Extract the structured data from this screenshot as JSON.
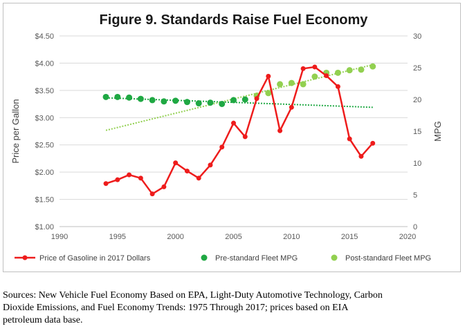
{
  "chart_data": {
    "type": "line",
    "title": "Figure 9. Standards Raise Fuel Economy",
    "ylabel": "Price per Gallon",
    "y2label": "MPG",
    "xlim": [
      1990,
      2020
    ],
    "ylim": [
      1.0,
      4.5
    ],
    "y2lim": [
      0,
      30
    ],
    "x_ticks": [
      "1990",
      "1995",
      "2000",
      "2005",
      "2010",
      "2015",
      "2020"
    ],
    "y_ticks": [
      "$1.00",
      "$1.50",
      "$2.00",
      "$2.50",
      "$3.00",
      "$3.50",
      "$4.00",
      "$4.50"
    ],
    "y2_ticks": [
      "0",
      "5",
      "10",
      "15",
      "20",
      "25",
      "30"
    ],
    "grid": true,
    "legend": "bottom",
    "series": [
      {
        "name": "Price of Gasoline in 2017 Dollars",
        "axis": "left",
        "style": "line-marker",
        "color": "#ee1c1c",
        "x": [
          1994,
          1995,
          1996,
          1997,
          1998,
          1999,
          2000,
          2001,
          2002,
          2003,
          2004,
          2005,
          2006,
          2007,
          2008,
          2009,
          2010,
          2011,
          2012,
          2013,
          2014,
          2015,
          2016,
          2017
        ],
        "y": [
          1.79,
          1.86,
          1.95,
          1.89,
          1.6,
          1.73,
          2.17,
          2.02,
          1.89,
          2.13,
          2.46,
          2.9,
          2.65,
          3.35,
          3.76,
          2.76,
          3.19,
          3.9,
          3.93,
          3.77,
          3.57,
          2.61,
          2.29,
          2.53
        ]
      },
      {
        "name": "Pre-standard Fleet MPG",
        "axis": "right",
        "style": "scatter-trend",
        "color": "#1fa843",
        "x": [
          1994,
          1995,
          1996,
          1997,
          1998,
          1999,
          2000,
          2001,
          2002,
          2003,
          2004,
          2005,
          2006
        ],
        "y": [
          20.4,
          20.4,
          20.3,
          20.1,
          19.9,
          19.7,
          19.8,
          19.6,
          19.4,
          19.5,
          19.3,
          19.9,
          20.0
        ]
      },
      {
        "name": "Post-standard Fleet MPG",
        "axis": "right",
        "style": "scatter-trend",
        "color": "#92d050",
        "x": [
          2007,
          2008,
          2009,
          2010,
          2011,
          2012,
          2013,
          2014,
          2015,
          2016,
          2017
        ],
        "y": [
          20.6,
          21.0,
          22.4,
          22.6,
          22.4,
          23.6,
          24.2,
          24.2,
          24.6,
          24.7,
          25.2
        ]
      }
    ]
  },
  "source_note": {
    "line1": "Sources: New Vehicle Fuel Economy Based on EPA, Light-Duty Automotive Technology, Carbon",
    "line2": "Dioxide Emissions, and Fuel Economy Trends: 1975 Through 2017; prices based on EIA",
    "line3": "petroleum data base."
  }
}
